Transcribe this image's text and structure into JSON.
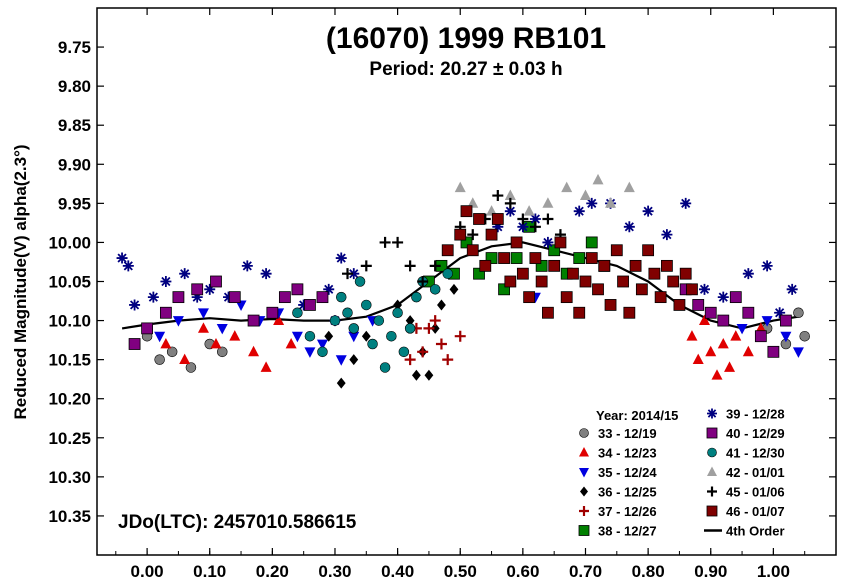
{
  "chart_data": {
    "type": "scatter",
    "title": "(16070) 1999 RB101",
    "subtitle": "Period: 20.27 ± 0.03 h",
    "ylabel": "Reduced Magnitude(V) alpha(2.3°)",
    "xlabel": "",
    "xlim": [
      -0.08,
      1.1
    ],
    "ylim": [
      10.4,
      9.7
    ],
    "y_inverted": true,
    "x_ticks": [
      "0.00",
      "0.10",
      "0.20",
      "0.30",
      "0.40",
      "0.50",
      "0.60",
      "0.70",
      "0.80",
      "0.90",
      "1.00"
    ],
    "y_ticks": [
      "9.75",
      "9.80",
      "9.85",
      "9.90",
      "9.95",
      "10.00",
      "10.05",
      "10.10",
      "10.15",
      "10.20",
      "10.25",
      "10.30",
      "10.35"
    ],
    "annotation": "JDo(LTC): 2457010.586615",
    "legend_title": "Year: 2014/15",
    "legend_position": "bottom-right",
    "series": [
      {
        "name": "33 - 12/19",
        "marker": "circle",
        "color": "#808080",
        "points": [
          [
            0.0,
            10.12
          ],
          [
            0.02,
            10.15
          ],
          [
            0.04,
            10.14
          ],
          [
            0.07,
            10.16
          ],
          [
            0.1,
            10.13
          ],
          [
            0.12,
            10.14
          ],
          [
            0.99,
            10.11
          ],
          [
            1.0,
            10.14
          ],
          [
            1.02,
            10.13
          ],
          [
            1.04,
            10.09
          ],
          [
            1.05,
            10.12
          ]
        ]
      },
      {
        "name": "34 - 12/23",
        "marker": "triangle-up",
        "color": "#e00000",
        "points": [
          [
            0.03,
            10.13
          ],
          [
            0.06,
            10.15
          ],
          [
            0.09,
            10.11
          ],
          [
            0.11,
            10.13
          ],
          [
            0.14,
            10.12
          ],
          [
            0.17,
            10.14
          ],
          [
            0.19,
            10.16
          ],
          [
            0.21,
            10.1
          ],
          [
            0.23,
            10.13
          ],
          [
            0.87,
            10.12
          ],
          [
            0.88,
            10.15
          ],
          [
            0.89,
            10.1
          ],
          [
            0.9,
            10.14
          ],
          [
            0.91,
            10.17
          ],
          [
            0.92,
            10.13
          ],
          [
            0.93,
            10.16
          ],
          [
            0.94,
            10.12
          ],
          [
            0.96,
            10.14
          ],
          [
            0.98,
            10.11
          ]
        ]
      },
      {
        "name": "35 - 12/24",
        "marker": "triangle-down",
        "color": "#0000e0",
        "points": [
          [
            0.02,
            10.12
          ],
          [
            0.05,
            10.1
          ],
          [
            0.09,
            10.09
          ],
          [
            0.12,
            10.11
          ],
          [
            0.15,
            10.08
          ],
          [
            0.18,
            10.1
          ],
          [
            0.21,
            10.09
          ],
          [
            0.24,
            10.12
          ],
          [
            0.26,
            10.14
          ],
          [
            0.28,
            10.13
          ],
          [
            0.31,
            10.15
          ],
          [
            0.33,
            10.12
          ],
          [
            0.36,
            10.1
          ],
          [
            0.62,
            10.07
          ],
          [
            0.88,
            10.08
          ],
          [
            0.95,
            10.11
          ],
          [
            0.99,
            10.1
          ],
          [
            1.02,
            10.12
          ],
          [
            1.04,
            10.14
          ]
        ]
      },
      {
        "name": "36 - 12/25",
        "marker": "diamond",
        "color": "#000000",
        "points": [
          [
            0.29,
            10.12
          ],
          [
            0.33,
            10.15
          ],
          [
            0.35,
            10.12
          ],
          [
            0.4,
            10.08
          ],
          [
            0.42,
            10.1
          ],
          [
            0.43,
            10.17
          ],
          [
            0.44,
            10.14
          ],
          [
            0.46,
            10.11
          ],
          [
            0.47,
            10.08
          ],
          [
            0.49,
            10.06
          ],
          [
            0.31,
            10.18
          ],
          [
            0.45,
            10.17
          ]
        ]
      },
      {
        "name": "37 - 12/26",
        "marker": "plus",
        "color": "#a00000",
        "points": [
          [
            0.43,
            10.11
          ],
          [
            0.44,
            10.14
          ],
          [
            0.45,
            10.11
          ],
          [
            0.46,
            10.1
          ],
          [
            0.47,
            10.13
          ],
          [
            0.48,
            10.15
          ],
          [
            0.5,
            10.12
          ],
          [
            0.42,
            10.15
          ]
        ]
      },
      {
        "name": "38 - 12/27",
        "marker": "square",
        "color": "#008000",
        "points": [
          [
            0.45,
            10.05
          ],
          [
            0.47,
            10.03
          ],
          [
            0.49,
            10.04
          ],
          [
            0.51,
            10.0
          ],
          [
            0.53,
            10.04
          ],
          [
            0.55,
            10.02
          ],
          [
            0.57,
            10.06
          ],
          [
            0.59,
            10.02
          ],
          [
            0.61,
            9.98
          ],
          [
            0.63,
            10.03
          ],
          [
            0.65,
            10.01
          ],
          [
            0.67,
            10.04
          ],
          [
            0.69,
            10.02
          ],
          [
            0.71,
            10.0
          ],
          [
            0.73,
            10.03
          ]
        ]
      },
      {
        "name": "39 - 12/28",
        "marker": "asterisk",
        "color": "#000080",
        "points": [
          [
            -0.04,
            10.02
          ],
          [
            -0.03,
            10.03
          ],
          [
            -0.02,
            10.08
          ],
          [
            0.01,
            10.07
          ],
          [
            0.03,
            10.05
          ],
          [
            0.06,
            10.04
          ],
          [
            0.08,
            10.07
          ],
          [
            0.1,
            10.06
          ],
          [
            0.13,
            10.07
          ],
          [
            0.16,
            10.03
          ],
          [
            0.19,
            10.04
          ],
          [
            0.22,
            10.07
          ],
          [
            0.25,
            10.08
          ],
          [
            0.29,
            10.06
          ],
          [
            0.3,
            10.1
          ],
          [
            0.31,
            10.02
          ],
          [
            0.33,
            10.04
          ],
          [
            0.56,
            9.98
          ],
          [
            0.58,
            9.96
          ],
          [
            0.6,
            9.98
          ],
          [
            0.62,
            9.97
          ],
          [
            0.64,
            10.0
          ],
          [
            0.69,
            9.96
          ],
          [
            0.71,
            9.95
          ],
          [
            0.74,
            9.95
          ],
          [
            0.77,
            9.98
          ],
          [
            0.8,
            9.96
          ],
          [
            0.83,
            9.99
          ],
          [
            0.86,
            9.95
          ],
          [
            0.89,
            10.06
          ],
          [
            0.92,
            10.07
          ],
          [
            0.96,
            10.04
          ],
          [
            0.99,
            10.03
          ],
          [
            1.01,
            10.09
          ],
          [
            1.03,
            10.06
          ]
        ]
      },
      {
        "name": "40 - 12/29",
        "marker": "square",
        "color": "#800080",
        "points": [
          [
            -0.02,
            10.13
          ],
          [
            0.0,
            10.11
          ],
          [
            0.03,
            10.09
          ],
          [
            0.05,
            10.07
          ],
          [
            0.08,
            10.06
          ],
          [
            0.11,
            10.05
          ],
          [
            0.14,
            10.07
          ],
          [
            0.17,
            10.1
          ],
          [
            0.2,
            10.09
          ],
          [
            0.22,
            10.07
          ],
          [
            0.24,
            10.06
          ],
          [
            0.26,
            10.08
          ],
          [
            0.28,
            10.07
          ],
          [
            0.86,
            10.06
          ],
          [
            0.88,
            10.08
          ],
          [
            0.9,
            10.09
          ],
          [
            0.92,
            10.1
          ],
          [
            0.94,
            10.07
          ],
          [
            0.96,
            10.09
          ],
          [
            0.98,
            10.12
          ],
          [
            1.0,
            10.14
          ],
          [
            1.02,
            10.1
          ]
        ]
      },
      {
        "name": "41 - 12/30",
        "marker": "circle",
        "color": "#008080",
        "points": [
          [
            0.24,
            10.09
          ],
          [
            0.26,
            10.12
          ],
          [
            0.28,
            10.14
          ],
          [
            0.3,
            10.1
          ],
          [
            0.31,
            10.07
          ],
          [
            0.32,
            10.09
          ],
          [
            0.33,
            10.11
          ],
          [
            0.34,
            10.05
          ],
          [
            0.35,
            10.08
          ],
          [
            0.36,
            10.13
          ],
          [
            0.37,
            10.1
          ],
          [
            0.38,
            10.16
          ],
          [
            0.39,
            10.12
          ],
          [
            0.4,
            10.09
          ],
          [
            0.41,
            10.14
          ],
          [
            0.42,
            10.11
          ],
          [
            0.43,
            10.07
          ],
          [
            0.44,
            10.05
          ],
          [
            0.46,
            10.06
          ],
          [
            0.48,
            10.04
          ]
        ]
      },
      {
        "name": "42 - 01/01",
        "marker": "triangle-up",
        "color": "#a0a0a0",
        "points": [
          [
            0.5,
            9.93
          ],
          [
            0.52,
            9.95
          ],
          [
            0.55,
            9.96
          ],
          [
            0.58,
            9.94
          ],
          [
            0.61,
            9.96
          ],
          [
            0.64,
            9.95
          ],
          [
            0.67,
            9.93
          ],
          [
            0.7,
            9.94
          ],
          [
            0.72,
            9.92
          ],
          [
            0.74,
            9.95
          ],
          [
            0.77,
            9.93
          ]
        ]
      },
      {
        "name": "45 - 01/06",
        "marker": "plus",
        "color": "#000000",
        "points": [
          [
            0.32,
            10.04
          ],
          [
            0.35,
            10.03
          ],
          [
            0.38,
            10.0
          ],
          [
            0.4,
            10.0
          ],
          [
            0.42,
            10.03
          ],
          [
            0.44,
            10.05
          ],
          [
            0.46,
            10.03
          ],
          [
            0.48,
            10.01
          ],
          [
            0.5,
            9.98
          ],
          [
            0.52,
            9.99
          ],
          [
            0.54,
            9.97
          ],
          [
            0.56,
            9.94
          ],
          [
            0.58,
            9.95
          ],
          [
            0.6,
            9.97
          ],
          [
            0.62,
            9.98
          ],
          [
            0.64,
            9.97
          ],
          [
            0.66,
            9.99
          ]
        ]
      },
      {
        "name": "46 - 01/07",
        "marker": "square",
        "color": "#800000",
        "points": [
          [
            0.48,
            10.01
          ],
          [
            0.5,
            9.99
          ],
          [
            0.51,
            9.96
          ],
          [
            0.52,
            10.01
          ],
          [
            0.53,
            9.97
          ],
          [
            0.54,
            10.03
          ],
          [
            0.55,
            9.99
          ],
          [
            0.56,
            9.97
          ],
          [
            0.57,
            10.02
          ],
          [
            0.58,
            10.05
          ],
          [
            0.59,
            10.0
          ],
          [
            0.6,
            10.04
          ],
          [
            0.61,
            10.07
          ],
          [
            0.62,
            10.02
          ],
          [
            0.63,
            10.05
          ],
          [
            0.64,
            10.09
          ],
          [
            0.65,
            10.03
          ],
          [
            0.66,
            10.0
          ],
          [
            0.67,
            10.07
          ],
          [
            0.68,
            10.04
          ],
          [
            0.69,
            10.09
          ],
          [
            0.7,
            10.05
          ],
          [
            0.71,
            10.02
          ],
          [
            0.72,
            10.06
          ],
          [
            0.73,
            10.03
          ],
          [
            0.74,
            10.08
          ],
          [
            0.75,
            10.01
          ],
          [
            0.76,
            10.05
          ],
          [
            0.77,
            10.09
          ],
          [
            0.78,
            10.03
          ],
          [
            0.79,
            10.06
          ],
          [
            0.8,
            10.01
          ],
          [
            0.81,
            10.04
          ],
          [
            0.82,
            10.07
          ],
          [
            0.83,
            10.03
          ],
          [
            0.84,
            10.05
          ],
          [
            0.85,
            10.08
          ],
          [
            0.86,
            10.04
          ],
          [
            0.87,
            10.06
          ]
        ]
      }
    ],
    "fit": {
      "name": "4th Order",
      "color": "#000000",
      "x": [
        -0.04,
        0.0,
        0.05,
        0.1,
        0.15,
        0.2,
        0.25,
        0.3,
        0.35,
        0.4,
        0.45,
        0.5,
        0.55,
        0.6,
        0.65,
        0.7,
        0.75,
        0.8,
        0.85,
        0.9,
        0.95,
        1.0,
        1.04
      ],
      "y": [
        10.11,
        10.105,
        10.1,
        10.097,
        10.1,
        10.098,
        10.1,
        10.1,
        10.095,
        10.08,
        10.05,
        10.02,
        10.005,
        10.0,
        10.01,
        10.02,
        10.03,
        10.05,
        10.08,
        10.1,
        10.11,
        10.1,
        10.095
      ]
    }
  }
}
